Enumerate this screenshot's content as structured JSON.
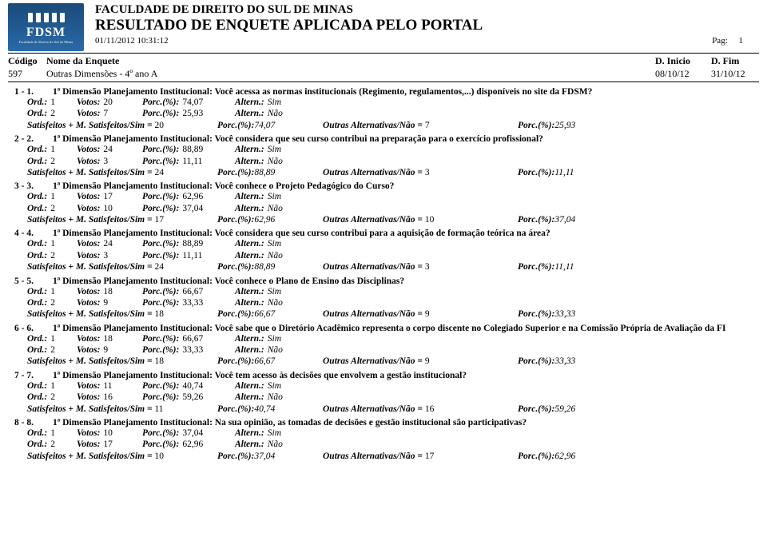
{
  "header": {
    "institution": "FACULDADE DE DIREITO DO SUL DE MINAS",
    "report_title": "RESULTADO DE ENQUETE APLICADA PELO PORTAL",
    "timestamp": "01/11/2012 10:31:12",
    "pag_label": "Pag:",
    "pag_value": "1",
    "logo_text": "FDSM",
    "logo_sub": "Faculdade de Direito do Sul de Minas"
  },
  "columns": {
    "codigo": "Código",
    "nome": "Nome da Enquete",
    "dinicio": "D. Inicio",
    "dfim": "D. Fim"
  },
  "enquete": {
    "codigo": "597",
    "nome": "Outras Dimensões - 4º ano A",
    "dinicio": "08/10/12",
    "dfim": "31/10/12"
  },
  "labels": {
    "ord": "Ord.:",
    "votos": "Votos:",
    "porc": "Porc.(%):",
    "altern": "Altern.:",
    "sat_prefix": "Satisfeitos + M. Satisfeitos/Sim =",
    "outras_prefix": "Outras Alternativas/Não ="
  },
  "questions": [
    {
      "num": "1 - 1.",
      "text": "1ª Dimensão Planejamento Institucional: Você acessa as normas institucionais (Regimento, regulamentos,...) disponíveis no site da FDSM?",
      "rows": [
        {
          "ord": "1",
          "votos": "20",
          "porc": "74,07",
          "altern": "Sim"
        },
        {
          "ord": "2",
          "votos": "7",
          "porc": "25,93",
          "altern": "Não"
        }
      ],
      "sat": "20",
      "sat_porc": "74,07",
      "out": "7",
      "out_porc": "25,93"
    },
    {
      "num": "2 - 2.",
      "text": "1ª Dimensão Planejamento Institucional: Você considera que seu curso contribui na preparação para o exercício profissional?",
      "rows": [
        {
          "ord": "1",
          "votos": "24",
          "porc": "88,89",
          "altern": "Sim"
        },
        {
          "ord": "2",
          "votos": "3",
          "porc": "11,11",
          "altern": "Não"
        }
      ],
      "sat": "24",
      "sat_porc": "88,89",
      "out": "3",
      "out_porc": "11,11"
    },
    {
      "num": "3 - 3.",
      "text": "1ª Dimensão Planejamento Institucional: Você conhece o Projeto Pedagógico do Curso?",
      "rows": [
        {
          "ord": "1",
          "votos": "17",
          "porc": "62,96",
          "altern": "Sim"
        },
        {
          "ord": "2",
          "votos": "10",
          "porc": "37,04",
          "altern": "Não"
        }
      ],
      "sat": "17",
      "sat_porc": "62,96",
      "out": "10",
      "out_porc": "37,04"
    },
    {
      "num": "4 - 4.",
      "text": "1ª Dimensão Planejamento Institucional: Você considera que seu curso contribui para a aquisição de formação teórica na área?",
      "rows": [
        {
          "ord": "1",
          "votos": "24",
          "porc": "88,89",
          "altern": "Sim"
        },
        {
          "ord": "2",
          "votos": "3",
          "porc": "11,11",
          "altern": "Não"
        }
      ],
      "sat": "24",
      "sat_porc": "88,89",
      "out": "3",
      "out_porc": "11,11"
    },
    {
      "num": "5 - 5.",
      "text": "1ª Dimensão Planejamento Institucional: Você conhece o Plano de Ensino das Disciplinas?",
      "rows": [
        {
          "ord": "1",
          "votos": "18",
          "porc": "66,67",
          "altern": "Sim"
        },
        {
          "ord": "2",
          "votos": "9",
          "porc": "33,33",
          "altern": "Não"
        }
      ],
      "sat": "18",
      "sat_porc": "66,67",
      "out": "9",
      "out_porc": "33,33"
    },
    {
      "num": "6 - 6.",
      "text": "1ª Dimensão Planejamento Institucional: Você sabe que o Diretório Acadêmico representa o corpo discente no Colegiado Superior e na Comissão Própria de Avaliação da FI",
      "rows": [
        {
          "ord": "1",
          "votos": "18",
          "porc": "66,67",
          "altern": "Sim"
        },
        {
          "ord": "2",
          "votos": "9",
          "porc": "33,33",
          "altern": "Não"
        }
      ],
      "sat": "18",
      "sat_porc": "66,67",
      "out": "9",
      "out_porc": "33,33"
    },
    {
      "num": "7 - 7.",
      "text": "1ª Dimensão Planejamento Institucional: Você tem acesso às decisões que envolvem a gestão institucional?",
      "rows": [
        {
          "ord": "1",
          "votos": "11",
          "porc": "40,74",
          "altern": "Sim"
        },
        {
          "ord": "2",
          "votos": "16",
          "porc": "59,26",
          "altern": "Não"
        }
      ],
      "sat": "11",
      "sat_porc": "40,74",
      "out": "16",
      "out_porc": "59,26"
    },
    {
      "num": "8 - 8.",
      "text": "1ª Dimensão Planejamento Institucional: Na sua opinião, as tomadas de decisões e gestão institucional são participativas?",
      "rows": [
        {
          "ord": "1",
          "votos": "10",
          "porc": "37,04",
          "altern": "Sim"
        },
        {
          "ord": "2",
          "votos": "17",
          "porc": "62,96",
          "altern": "Não"
        }
      ],
      "sat": "10",
      "sat_porc": "37,04",
      "out": "17",
      "out_porc": "62,96"
    }
  ]
}
